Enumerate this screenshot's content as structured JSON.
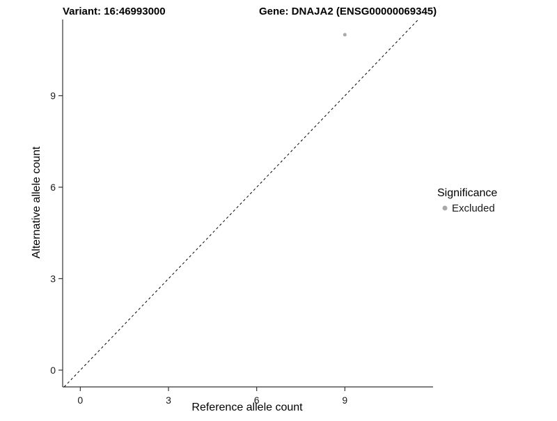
{
  "titles": {
    "variant": "Variant: 16:46993000",
    "gene": "Gene: DNAJA2 (ENSG00000069345)"
  },
  "axes": {
    "x_label": "Reference allele count",
    "y_label": "Alternative allele count"
  },
  "legend": {
    "title": "Significance",
    "items": [
      {
        "label": "Excluded",
        "color": "#a9a9a9"
      }
    ]
  },
  "colors": {
    "axis_line": "#333333",
    "tick_text": "#1a1a1a",
    "identity_line": "#000000",
    "point": "#a9a9a9",
    "background": "#ffffff"
  },
  "chart_data": {
    "type": "scatter",
    "title": "Variant: 16:46993000 | Gene: DNAJA2 (ENSG00000069345)",
    "xlabel": "Reference allele count",
    "ylabel": "Alternative allele count",
    "x_ticks": [
      0,
      3,
      6,
      9
    ],
    "y_ticks": [
      0,
      3,
      6,
      9
    ],
    "xlim": [
      -0.6,
      12
    ],
    "ylim": [
      -0.55,
      11.5
    ],
    "grid": false,
    "legend_position": "right",
    "legend_title": "Significance",
    "series": [
      {
        "name": "Excluded",
        "color": "#a9a9a9",
        "points": [
          {
            "x": 9,
            "y": 11
          }
        ]
      }
    ],
    "reference_line": {
      "type": "identity",
      "equation": "y = x",
      "style": "dashed",
      "color": "#000000"
    }
  }
}
